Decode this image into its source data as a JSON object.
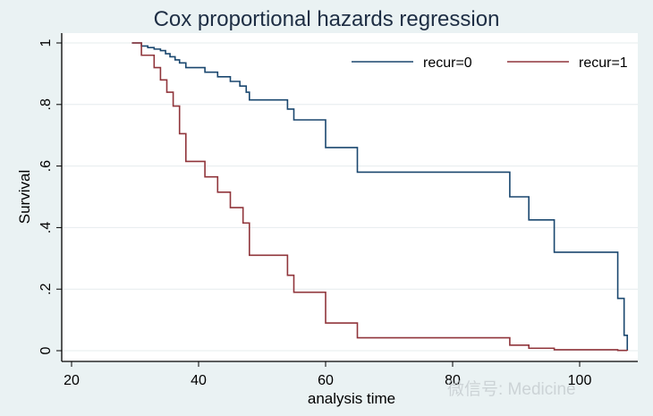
{
  "chart_data": {
    "type": "line",
    "title": "Cox proportional hazards regression",
    "xlabel": "analysis time",
    "ylabel": "Survival",
    "xlim": [
      18,
      111
    ],
    "ylim": [
      -0.03,
      1.03
    ],
    "x_ticks": [
      20,
      40,
      60,
      80,
      100
    ],
    "x_tick_labels": [
      "20",
      "40",
      "60",
      "80",
      "100"
    ],
    "y_ticks": [
      0,
      0.2,
      0.4,
      0.6,
      0.8,
      1
    ],
    "y_tick_labels": [
      "0",
      ".2",
      ".4",
      ".6",
      ".8",
      "1"
    ],
    "grid": "horizontal",
    "legend_position": "top-right inside",
    "step": true,
    "series": [
      {
        "name": "recur=0",
        "color": "#1a476f",
        "x": [
          29.5,
          31,
          32,
          33,
          34,
          34.8,
          35.5,
          36.3,
          37,
          38,
          41,
          43,
          45,
          46.5,
          47.5,
          48,
          54,
          55,
          60,
          65,
          89,
          92,
          96,
          106,
          107,
          107.5
        ],
        "y": [
          1,
          0.99,
          0.985,
          0.98,
          0.975,
          0.965,
          0.955,
          0.945,
          0.935,
          0.92,
          0.905,
          0.89,
          0.875,
          0.86,
          0.84,
          0.815,
          0.785,
          0.75,
          0.66,
          0.58,
          0.5,
          0.425,
          0.32,
          0.17,
          0.05,
          0.0
        ]
      },
      {
        "name": "recur=1",
        "color": "#90353b",
        "x": [
          29.5,
          31,
          33,
          34,
          35,
          36,
          37,
          38,
          41,
          43,
          45,
          47,
          48,
          54,
          55,
          60,
          65,
          89,
          92,
          96,
          106,
          107.5
        ],
        "y": [
          1,
          0.96,
          0.92,
          0.88,
          0.84,
          0.795,
          0.705,
          0.615,
          0.565,
          0.515,
          0.465,
          0.415,
          0.31,
          0.245,
          0.19,
          0.09,
          0.042,
          0.018,
          0.008,
          0.003,
          0.001,
          0.0
        ]
      }
    ]
  },
  "watermark": "微信号: Medicine"
}
